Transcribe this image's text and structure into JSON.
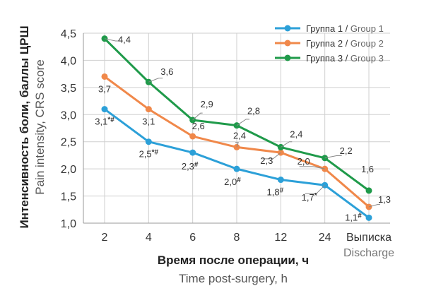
{
  "chart_data": {
    "type": "line",
    "categories": [
      "2",
      "4",
      "6",
      "8",
      "12",
      "24",
      "Выписка"
    ],
    "category_sub": [
      "",
      "",
      "",
      "",
      "",
      "",
      "Discharge"
    ],
    "ylabel_ru": "Интенсивность боли, баллы ЦРШ",
    "ylabel_en": "Pain intensity, CRS score",
    "xlabel_ru": "Время после операции, ч",
    "xlabel_en": "Time post-surgery, h",
    "ylim": [
      1.0,
      4.5
    ],
    "yticks": [
      "1,0",
      "1,5",
      "2,0",
      "2,5",
      "3,0",
      "3,5",
      "4,0",
      "4,5"
    ],
    "grid": true,
    "legend_position": "top-right",
    "series": [
      {
        "name_ru": "Группа 1",
        "name_en": "Group 1",
        "color": "#2ca0d8",
        "values": [
          3.1,
          2.5,
          2.3,
          2.0,
          1.8,
          1.7,
          1.1
        ],
        "labels": [
          "3,1",
          "2,5",
          "2,3",
          "2,0",
          "1,8",
          "1,7",
          "1,1"
        ],
        "marks": [
          "*#",
          "*#",
          "#",
          "#",
          "#",
          "*",
          "#"
        ]
      },
      {
        "name_ru": "Группа 2",
        "name_en": "Group 2",
        "color": "#f0884a",
        "values": [
          3.7,
          3.1,
          2.6,
          2.4,
          2.3,
          2.0,
          1.3
        ],
        "labels": [
          "3,7",
          "3,1",
          "2,6",
          "2,4",
          "2,3",
          "2,0",
          "1,3"
        ],
        "marks": [
          "",
          "",
          "",
          "",
          "",
          "",
          ""
        ]
      },
      {
        "name_ru": "Группа 3",
        "name_en": "Group 3",
        "color": "#1f9a4a",
        "values": [
          4.4,
          3.6,
          2.9,
          2.8,
          2.4,
          2.2,
          1.6
        ],
        "labels": [
          "4,4",
          "3,6",
          "2,9",
          "2,8",
          "2,4",
          "2,2",
          "1,6"
        ],
        "marks": [
          "",
          "",
          "",
          "",
          "",
          "",
          ""
        ]
      }
    ]
  }
}
